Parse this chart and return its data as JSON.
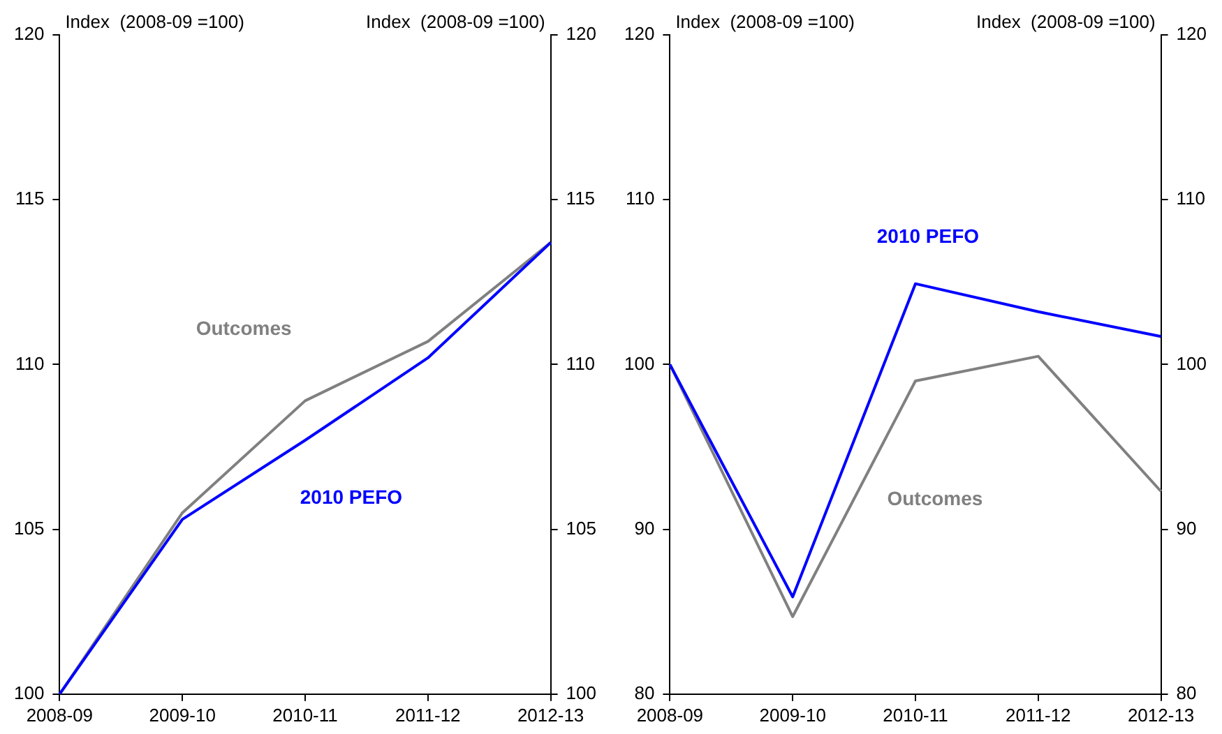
{
  "chart_data": [
    {
      "type": "line",
      "categories": [
        "2008-09",
        "2009-10",
        "2010-11",
        "2011-12",
        "2012-13"
      ],
      "ylabel": "Index  (2008-09 =100)",
      "y2label": "Index  (2008-09 =100)",
      "ylim": [
        100,
        120
      ],
      "yticks": [
        100,
        105,
        110,
        115,
        120
      ],
      "y2lim": [
        100,
        120
      ],
      "y2ticks": [
        100,
        105,
        110,
        115,
        120
      ],
      "grid": false,
      "legend": false,
      "marker": "none",
      "line_style": "solid",
      "series": [
        {
          "name": "Outcomes",
          "color": "#808080",
          "values": [
            100,
            105.5,
            108.9,
            110.7,
            113.7
          ]
        },
        {
          "name": "2010 PEFO",
          "color": "#0000ff",
          "values": [
            100,
            105.3,
            107.7,
            110.2,
            113.7
          ]
        }
      ]
    },
    {
      "type": "line",
      "categories": [
        "2008-09",
        "2009-10",
        "2010-11",
        "2011-12",
        "2012-13"
      ],
      "ylabel": "Index  (2008-09 =100)",
      "y2label": "Index  (2008-09 =100)",
      "ylim": [
        80,
        120
      ],
      "yticks": [
        80,
        90,
        100,
        110,
        120
      ],
      "y2lim": [
        80,
        120
      ],
      "y2ticks": [
        80,
        90,
        100,
        110,
        120
      ],
      "grid": false,
      "legend": false,
      "marker": "none",
      "line_style": "solid",
      "series": [
        {
          "name": "Outcomes",
          "color": "#808080",
          "values": [
            100,
            84.7,
            99.0,
            100.5,
            92.3
          ]
        },
        {
          "name": "2010 PEFO",
          "color": "#0000ff",
          "values": [
            100,
            85.9,
            104.9,
            103.2,
            101.7
          ]
        }
      ]
    }
  ]
}
